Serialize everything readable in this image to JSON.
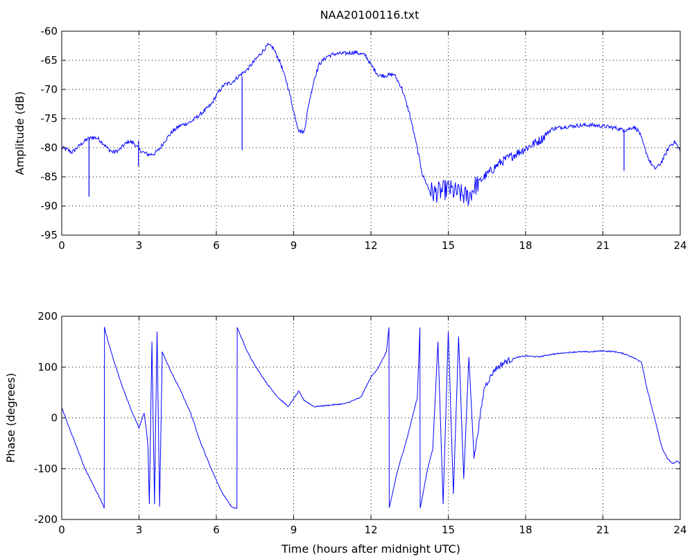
{
  "figure": {
    "title": "NAA20100116.txt",
    "line_color": "#0000ff"
  },
  "chart_data": [
    {
      "type": "line",
      "title": "NAA20100116.txt",
      "xlabel": "",
      "ylabel": "Amplitude (dB)",
      "xlim": [
        0,
        24
      ],
      "ylim": [
        -95,
        -60
      ],
      "grid": true,
      "xticks": [
        0,
        3,
        6,
        9,
        12,
        15,
        18,
        21,
        24
      ],
      "yticks": [
        -95,
        -90,
        -85,
        -80,
        -75,
        -70,
        -65,
        -60
      ],
      "series": [
        {
          "color": "#0000ff",
          "x": [
            0,
            0.2,
            0.4,
            0.6,
            0.8,
            1.0,
            1.2,
            1.4,
            1.6,
            1.8,
            2.0,
            2.2,
            2.4,
            2.6,
            2.8,
            3.0,
            3.2,
            3.4,
            3.6,
            3.8,
            4.0,
            4.3,
            4.6,
            5.0,
            5.4,
            5.8,
            6.0,
            6.3,
            6.6,
            6.9,
            7.2,
            7.5,
            7.8,
            8.0,
            8.2,
            8.5,
            8.8,
            9.0,
            9.2,
            9.4,
            9.6,
            9.8,
            10.0,
            10.3,
            10.6,
            11.0,
            11.4,
            11.8,
            12.0,
            12.3,
            12.6,
            12.9,
            13.2,
            13.5,
            13.8,
            14.0,
            14.2,
            14.4,
            14.6,
            14.8,
            15.0,
            15.2,
            15.4,
            15.6,
            15.8,
            16.0,
            16.3,
            16.6,
            17.0,
            17.4,
            17.8,
            18.2,
            18.6,
            19.0,
            19.5,
            20.0,
            20.5,
            21.0,
            21.5,
            21.8,
            22.0,
            22.2,
            22.4,
            22.6,
            22.8,
            23.0,
            23.2,
            23.4,
            23.6,
            23.8,
            24.0
          ],
          "y": [
            -80.0,
            -80.3,
            -80.8,
            -80.0,
            -79.2,
            -78.5,
            -78.2,
            -78.4,
            -79.2,
            -80.2,
            -80.8,
            -80.5,
            -79.6,
            -78.9,
            -79.2,
            -80.3,
            -80.9,
            -81.2,
            -81.0,
            -80.2,
            -78.8,
            -77.2,
            -76.2,
            -75.6,
            -74.2,
            -72.6,
            -71.0,
            -69.2,
            -68.8,
            -67.6,
            -66.6,
            -65.0,
            -63.4,
            -62.4,
            -62.8,
            -65.6,
            -69.8,
            -73.8,
            -77.0,
            -77.4,
            -72.2,
            -68.2,
            -65.6,
            -64.3,
            -63.9,
            -63.8,
            -63.6,
            -64.2,
            -65.8,
            -67.6,
            -67.6,
            -67.4,
            -69.8,
            -74.2,
            -80.2,
            -84.6,
            -86.6,
            -87.8,
            -87.6,
            -87.4,
            -87.0,
            -87.5,
            -87.8,
            -88.2,
            -88.4,
            -86.8,
            -85.4,
            -84.2,
            -82.6,
            -81.6,
            -80.6,
            -79.6,
            -78.6,
            -76.8,
            -76.4,
            -76.2,
            -76.1,
            -76.3,
            -76.6,
            -77.0,
            -76.8,
            -76.4,
            -77.2,
            -79.8,
            -82.2,
            -83.6,
            -83.0,
            -81.4,
            -79.6,
            -79.0,
            -80.6
          ]
        }
      ],
      "annotations": [
        {
          "x": 1.06,
          "y_top": -78.4,
          "y_bottom": -88.4
        },
        {
          "x": 2.98,
          "y_top": -78.8,
          "y_bottom": -83.2
        },
        {
          "x": 7.0,
          "y_top": -67.8,
          "y_bottom": -80.4
        },
        {
          "x": 21.82,
          "y_top": -76.8,
          "y_bottom": -84.0
        }
      ]
    },
    {
      "type": "line",
      "title": "",
      "xlabel": "Time (hours after midnight UTC)",
      "ylabel": "Phase (degrees)",
      "xlim": [
        0,
        24
      ],
      "ylim": [
        -200,
        200
      ],
      "grid": true,
      "xticks": [
        0,
        3,
        6,
        9,
        12,
        15,
        18,
        21,
        24
      ],
      "yticks": [
        -200,
        -100,
        0,
        100,
        200
      ],
      "series": [
        {
          "color": "#0000ff",
          "x": [
            0,
            0.3,
            0.6,
            0.9,
            1.2,
            1.5,
            1.65,
            1.66,
            1.8,
            2.1,
            2.4,
            2.7,
            3.0,
            3.2,
            3.3,
            3.35,
            3.4,
            3.5,
            3.6,
            3.7,
            3.8,
            3.9,
            4.2,
            4.6,
            5.0,
            5.4,
            5.8,
            6.2,
            6.6,
            6.8,
            6.81,
            7.2,
            7.6,
            8.0,
            8.4,
            8.8,
            9.0,
            9.2,
            9.4,
            9.8,
            10.4,
            11.0,
            11.6,
            12.0,
            12.3,
            12.6,
            12.7,
            12.71,
            13.0,
            13.4,
            13.8,
            13.9,
            13.91,
            14.2,
            14.4,
            14.6,
            14.8,
            15.0,
            15.2,
            15.4,
            15.6,
            15.8,
            16.0,
            16.4,
            16.8,
            17.2,
            17.6,
            18.0,
            18.5,
            19.0,
            19.5,
            20.0,
            20.5,
            21.0,
            21.5,
            21.9,
            22.2,
            22.5,
            22.7,
            22.9,
            23.1,
            23.3,
            23.5,
            23.7,
            23.9,
            24.0
          ],
          "y": [
            20,
            -20,
            -60,
            -100,
            -130,
            -160,
            -178,
            178,
            150,
            100,
            55,
            15,
            -20,
            10,
            -30,
            -60,
            -170,
            150,
            -170,
            170,
            -175,
            130,
            95,
            55,
            10,
            -50,
            -100,
            -145,
            -176,
            -178,
            178,
            130,
            95,
            65,
            40,
            22,
            38,
            52,
            35,
            22,
            25,
            28,
            40,
            80,
            100,
            130,
            178,
            -178,
            -110,
            -40,
            40,
            178,
            -178,
            -100,
            -60,
            150,
            -170,
            170,
            -150,
            160,
            -120,
            120,
            -80,
            60,
            95,
            110,
            118,
            122,
            120,
            125,
            128,
            130,
            130,
            132,
            130,
            125,
            118,
            110,
            60,
            20,
            -20,
            -60,
            -80,
            -90,
            -85,
            -90
          ]
        }
      ],
      "annotations": []
    }
  ]
}
